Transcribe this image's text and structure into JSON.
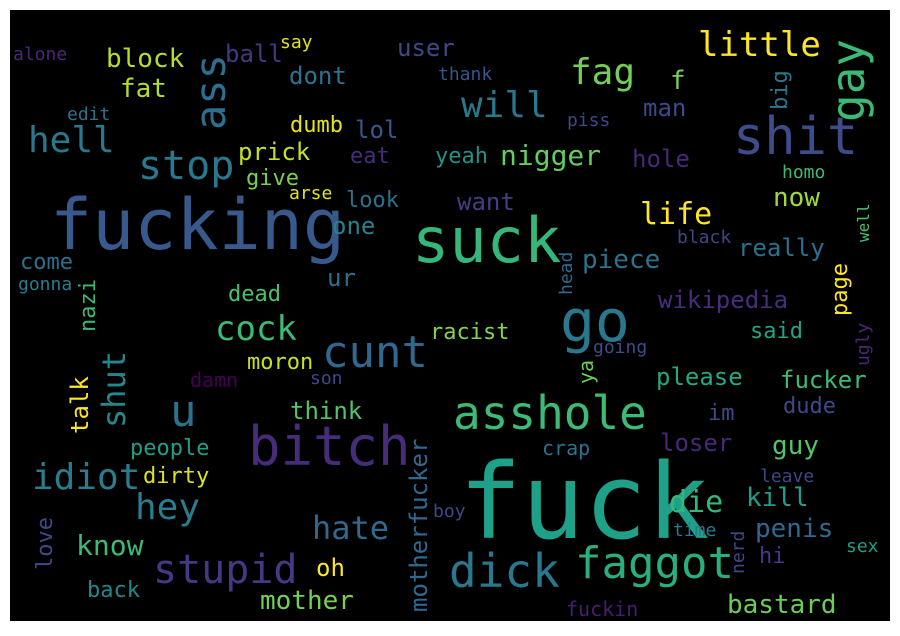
{
  "words": [
    {
      "text": "fuck",
      "color": "#1fa088"
    },
    {
      "text": "fucking",
      "color": "#38598c"
    },
    {
      "text": "suck",
      "color": "#35b779"
    },
    {
      "text": "bitch",
      "color": "#472c7a"
    },
    {
      "text": "shit",
      "color": "#3e4c8a"
    },
    {
      "text": "go",
      "color": "#2a788e"
    },
    {
      "text": "asshole",
      "color": "#3bbb75"
    },
    {
      "text": "faggot",
      "color": "#29af7f"
    },
    {
      "text": "dick",
      "color": "#2a788e"
    },
    {
      "text": "cunt",
      "color": "#31688e"
    },
    {
      "text": "stupid",
      "color": "#443983"
    },
    {
      "text": "u",
      "color": "#2c728e"
    },
    {
      "text": "stop",
      "color": "#2a788e"
    },
    {
      "text": "gay",
      "color": "#3aba76"
    },
    {
      "text": "ass",
      "color": "#2e6e8e"
    },
    {
      "text": "fag",
      "color": "#73d056"
    },
    {
      "text": "idiot",
      "color": "#287d8e"
    },
    {
      "text": "hey",
      "color": "#287d8e"
    },
    {
      "text": "little",
      "color": "#fde725"
    },
    {
      "text": "will",
      "color": "#2a788e"
    },
    {
      "text": "hell",
      "color": "#2a788e"
    },
    {
      "text": "cock",
      "color": "#3bbb75"
    },
    {
      "text": "shut",
      "color": "#23888e"
    },
    {
      "text": "hate",
      "color": "#31688e"
    },
    {
      "text": "motherfucker",
      "color": "#31688e"
    },
    {
      "text": "nigger",
      "color": "#63cb5f"
    },
    {
      "text": "life",
      "color": "#fde725"
    },
    {
      "text": "die",
      "color": "#35b779"
    },
    {
      "text": "know",
      "color": "#3bbb75"
    },
    {
      "text": "mother",
      "color": "#75d054"
    },
    {
      "text": "bastard",
      "color": "#6ccd5a"
    },
    {
      "text": "block",
      "color": "#b5de2b"
    },
    {
      "text": "fat",
      "color": "#b5de2b"
    },
    {
      "text": "ball",
      "color": "#453882"
    },
    {
      "text": "say",
      "color": "#e2e418"
    },
    {
      "text": "user",
      "color": "#3e4989"
    },
    {
      "text": "dont",
      "color": "#2c728e"
    },
    {
      "text": "thank",
      "color": "#39558c"
    },
    {
      "text": "f",
      "color": "#7ad151"
    },
    {
      "text": "big",
      "color": "#2a788e"
    },
    {
      "text": "man",
      "color": "#3e4989"
    },
    {
      "text": "piss",
      "color": "#3e4989"
    },
    {
      "text": "alone",
      "color": "#482878"
    },
    {
      "text": "edit",
      "color": "#2c728e"
    },
    {
      "text": "dumb",
      "color": "#e5e419"
    },
    {
      "text": "lol",
      "color": "#38588c"
    },
    {
      "text": "eat",
      "color": "#472d7b"
    },
    {
      "text": "yeah",
      "color": "#21918c"
    },
    {
      "text": "hole",
      "color": "#482878"
    },
    {
      "text": "prick",
      "color": "#c8e020"
    },
    {
      "text": "give",
      "color": "#7ad151"
    },
    {
      "text": "arse",
      "color": "#e2e418"
    },
    {
      "text": "look",
      "color": "#2d708e"
    },
    {
      "text": "want",
      "color": "#433e85"
    },
    {
      "text": "homo",
      "color": "#3aba76"
    },
    {
      "text": "now",
      "color": "#9fda3a"
    },
    {
      "text": "one",
      "color": "#26828e"
    },
    {
      "text": "black",
      "color": "#404688"
    },
    {
      "text": "well",
      "color": "#4ac16d"
    },
    {
      "text": "really",
      "color": "#2d708e"
    },
    {
      "text": "come",
      "color": "#2d708e"
    },
    {
      "text": "gonna",
      "color": "#287d8e"
    },
    {
      "text": "ur",
      "color": "#2d708e"
    },
    {
      "text": "head",
      "color": "#31688e"
    },
    {
      "text": "piece",
      "color": "#2c728e"
    },
    {
      "text": "page",
      "color": "#fde725"
    },
    {
      "text": "dead",
      "color": "#4ac16d"
    },
    {
      "text": "nazi",
      "color": "#3aba76"
    },
    {
      "text": "wikipedia",
      "color": "#472d7b"
    },
    {
      "text": "racist",
      "color": "#84d44b"
    },
    {
      "text": "going",
      "color": "#3e4c8a"
    },
    {
      "text": "said",
      "color": "#20a486"
    },
    {
      "text": "ugly",
      "color": "#482878"
    },
    {
      "text": "moron",
      "color": "#c8e020"
    },
    {
      "text": "ya",
      "color": "#6ccd5a"
    },
    {
      "text": "talk",
      "color": "#fde725"
    },
    {
      "text": "damn",
      "color": "#440154"
    },
    {
      "text": "son",
      "color": "#3e4989"
    },
    {
      "text": "please",
      "color": "#22a884"
    },
    {
      "text": "fucker",
      "color": "#3bbb75"
    },
    {
      "text": "think",
      "color": "#52c569"
    },
    {
      "text": "im",
      "color": "#3e4989"
    },
    {
      "text": "dude",
      "color": "#3e4989"
    },
    {
      "text": "people",
      "color": "#1f9e89"
    },
    {
      "text": "loser",
      "color": "#482878"
    },
    {
      "text": "guy",
      "color": "#52c569"
    },
    {
      "text": "crap",
      "color": "#2c728e"
    },
    {
      "text": "dirty",
      "color": "#dde318"
    },
    {
      "text": "leave",
      "color": "#414487"
    },
    {
      "text": "kill",
      "color": "#1f9e89"
    },
    {
      "text": "penis",
      "color": "#31688e"
    },
    {
      "text": "love",
      "color": "#3e4989"
    },
    {
      "text": "boy",
      "color": "#3e4989"
    },
    {
      "text": "oh",
      "color": "#fde725"
    },
    {
      "text": "time",
      "color": "#2a788e"
    },
    {
      "text": "nerd",
      "color": "#3e4989"
    },
    {
      "text": "hi",
      "color": "#443983"
    },
    {
      "text": "sex",
      "color": "#1f9e89"
    },
    {
      "text": "back",
      "color": "#23888e"
    },
    {
      "text": "fuckin",
      "color": "#481f70"
    }
  ]
}
